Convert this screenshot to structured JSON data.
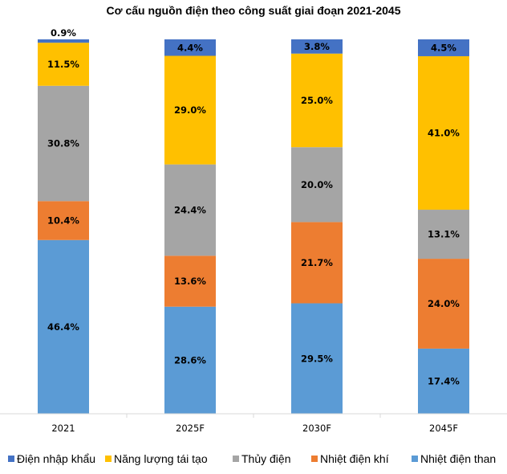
{
  "chart_data": {
    "type": "bar",
    "stacked": true,
    "title": "Cơ cấu nguồn điện theo công suất giai đoạn 2021-2045",
    "xlabel": "",
    "ylabel": "",
    "ylim": [
      0,
      100
    ],
    "grid": false,
    "legend_position": "bottom",
    "categories": [
      "2021",
      "2025F",
      "2030F",
      "2045F"
    ],
    "series": [
      {
        "name": "Nhiệt điện than",
        "color": "#5B9BD5",
        "values": [
          46.4,
          28.6,
          29.5,
          17.4
        ],
        "labels": [
          "46.4%",
          "28.6%",
          "29.5%",
          "17.4%"
        ]
      },
      {
        "name": "Nhiệt điện khí",
        "color": "#ED7D31",
        "values": [
          10.4,
          13.6,
          21.7,
          24.0
        ],
        "labels": [
          "10.4%",
          "13.6%",
          "21.7%",
          "24.0%"
        ]
      },
      {
        "name": "Thủy điện",
        "color": "#A5A5A5",
        "values": [
          30.8,
          24.4,
          20.0,
          13.1
        ],
        "labels": [
          "30.8%",
          "24.4%",
          "20.0%",
          "13.1%"
        ]
      },
      {
        "name": "Năng lượng tái tạo",
        "color": "#FFC000",
        "values": [
          11.5,
          29.0,
          25.0,
          41.0
        ],
        "labels": [
          "11.5%",
          "29.0%",
          "25.0%",
          "41.0%"
        ]
      },
      {
        "name": "Điện nhập khẩu",
        "color": "#4472C4",
        "values": [
          0.9,
          4.4,
          3.8,
          4.5
        ],
        "labels": [
          "0.9%",
          "4.4%",
          "3.8%",
          "4.5%"
        ]
      }
    ],
    "legend_order": [
      "Điện nhập khẩu",
      "Năng lượng tái tạo",
      "Thủy điện",
      "Nhiệt điện khí",
      "Nhiệt điện than"
    ]
  }
}
